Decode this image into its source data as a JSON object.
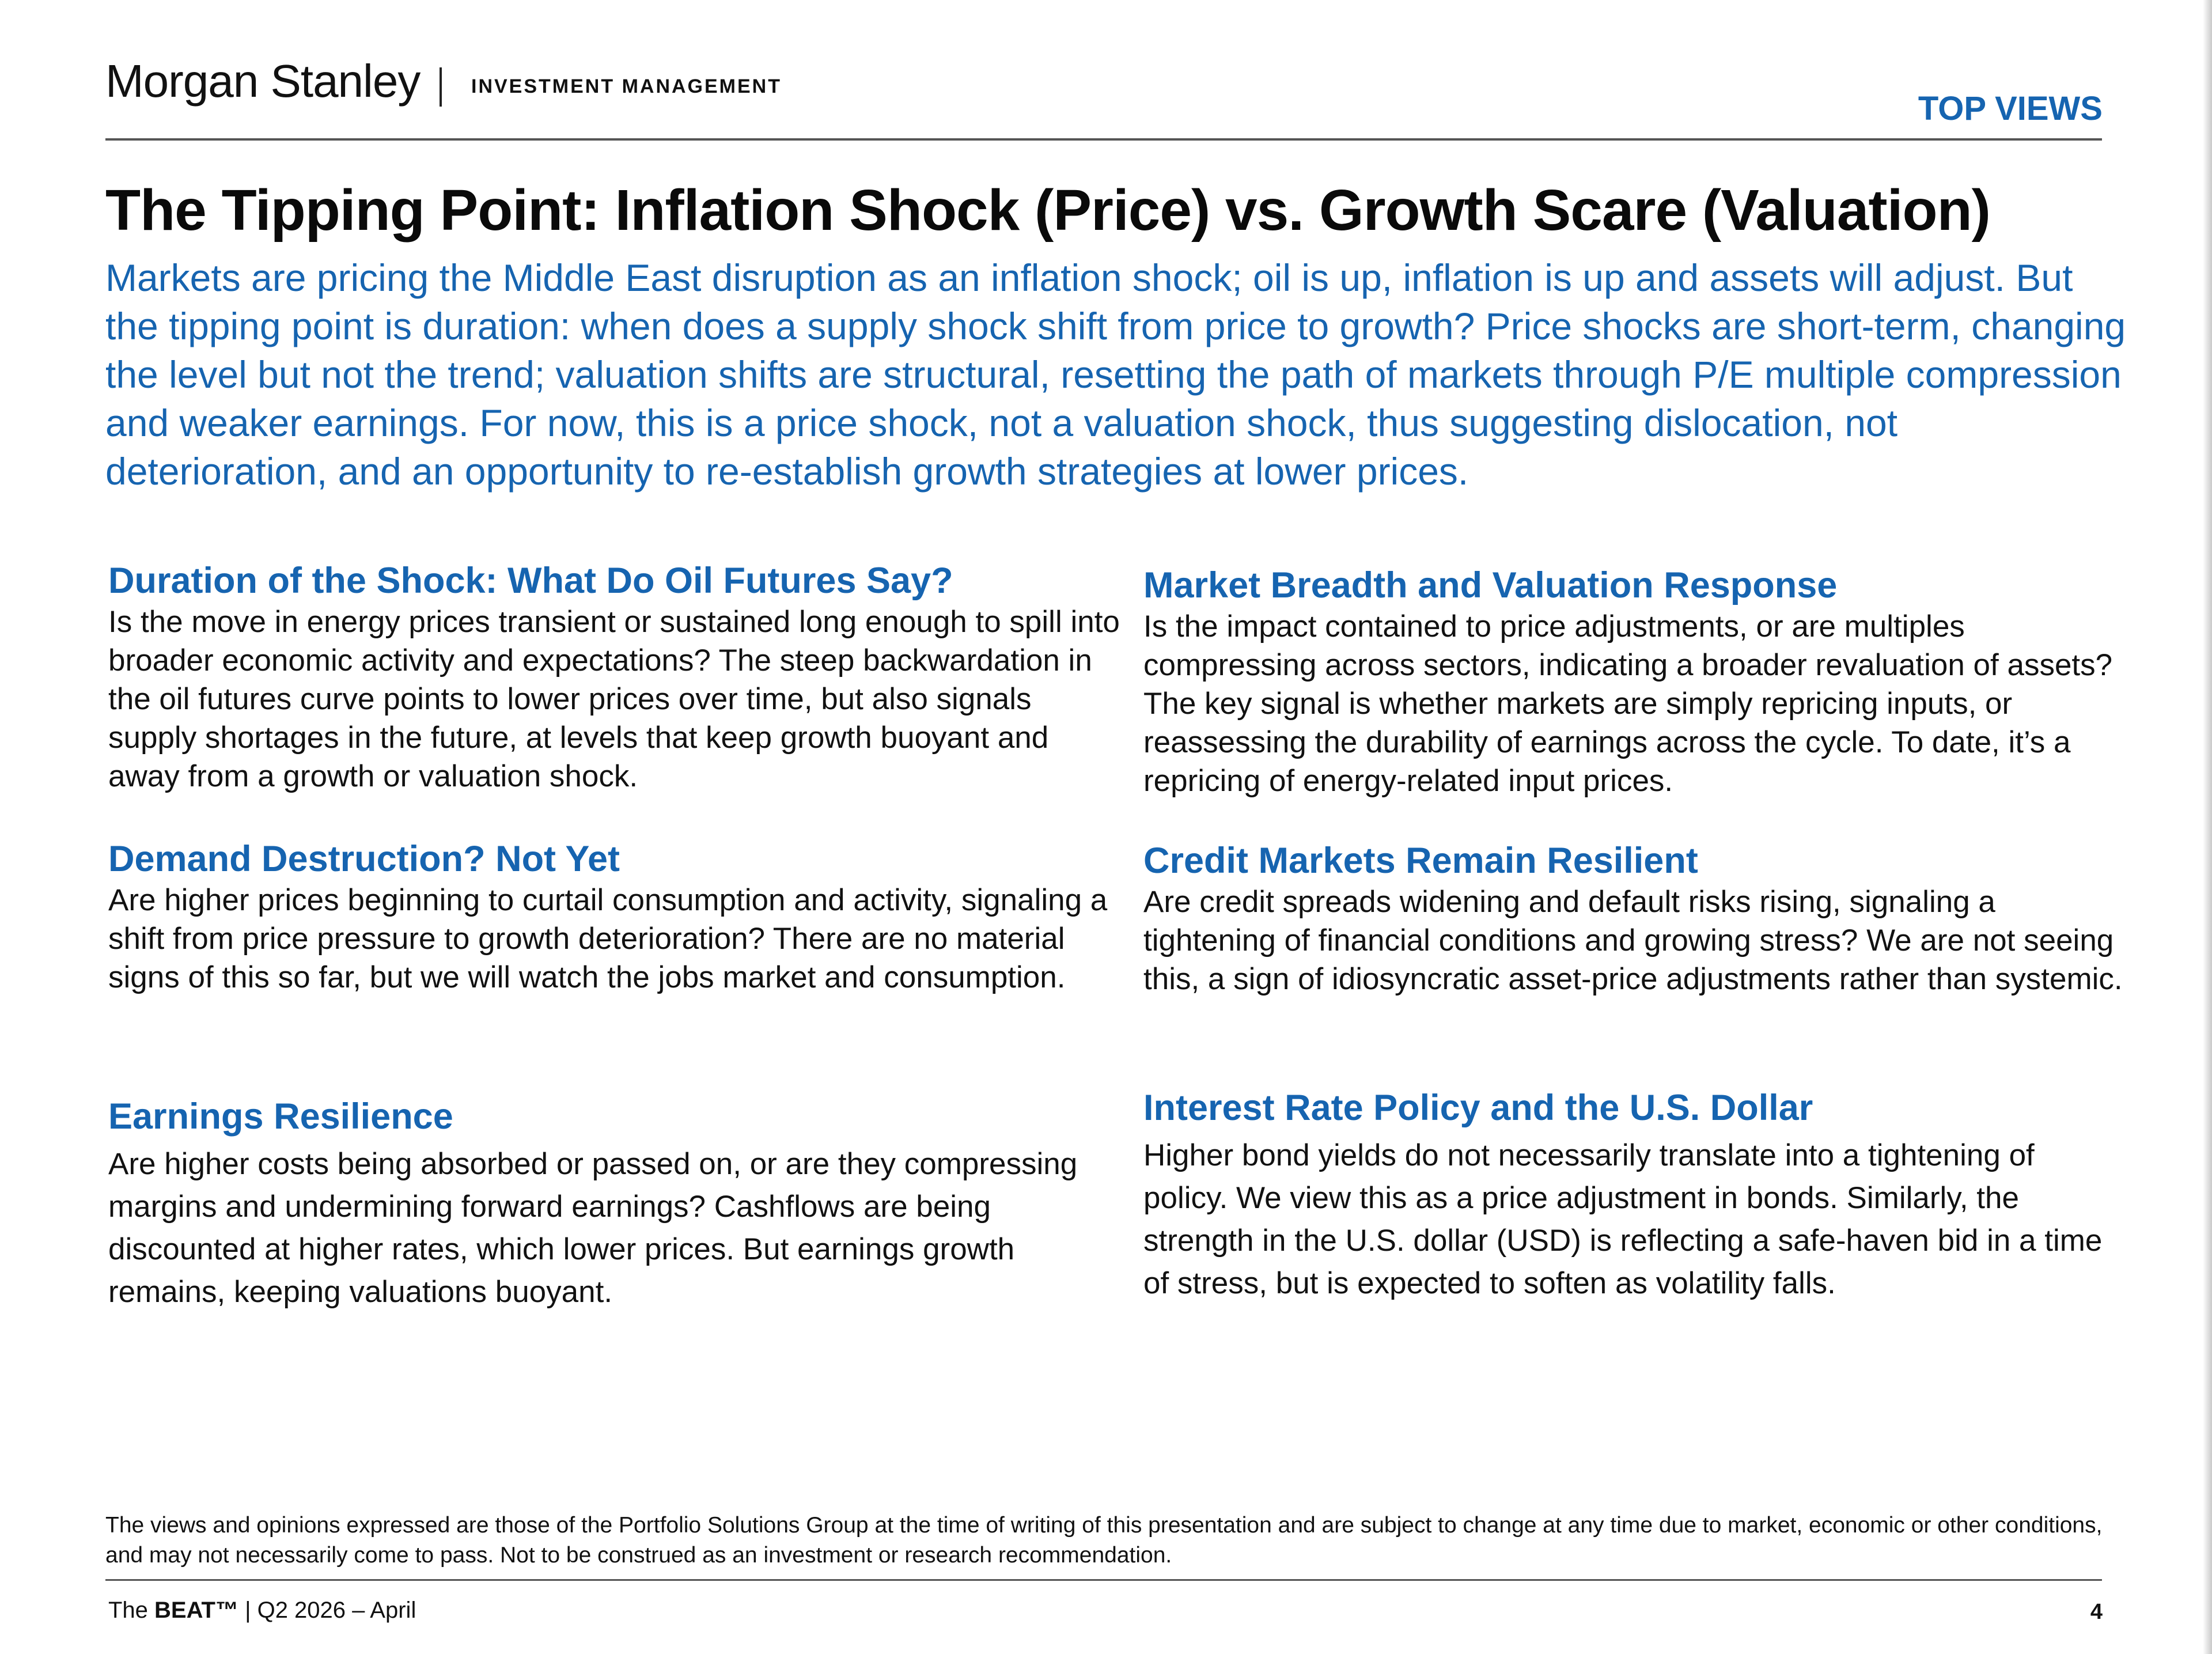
{
  "header": {
    "brand": "Morgan Stanley",
    "division": "INVESTMENT MANAGEMENT",
    "section_label": "TOP VIEWS"
  },
  "title": "The Tipping Point: Inflation Shock (Price) vs. Growth Scare (Valuation)",
  "intro": "Markets are pricing the Middle East disruption as an inflation shock; oil is up, inflation is up and assets will adjust. But the tipping point is duration: when does a supply shock shift from price to growth? Price shocks are short-term, changing the level but not the trend; valuation shifts are structural, resetting the path of markets through P/E multiple compression and weaker earnings. For now, this is a price shock, not a valuation shock, thus suggesting dislocation, not deterioration, and an opportunity to re-establish growth strategies at lower prices.",
  "sections": {
    "duration": {
      "heading": "Duration of the Shock: What Do Oil Futures Say?",
      "body": "Is the move in energy prices transient or sustained long enough to spill into broader economic activity and expectations? The steep backwardation in the oil futures curve points to lower prices over time, but also signals supply shortages in the future, at levels that keep growth buoyant and away from a growth or valuation shock."
    },
    "demand": {
      "heading": "Demand Destruction? Not Yet",
      "body": "Are higher prices beginning to curtail consumption and activity, signaling a shift from price pressure to growth deterioration? There are no material signs of this so far, but we will watch the jobs market and consumption."
    },
    "earnings": {
      "heading": "Earnings Resilience",
      "body": "Are higher costs being absorbed or passed on, or are they compressing margins and undermining forward earnings? Cashflows are being discounted at higher rates, which lower prices. But earnings growth remains, keeping valuations buoyant."
    },
    "breadth": {
      "heading": "Market Breadth and Valuation Response",
      "body": "Is the impact contained to price adjustments, or are multiples compressing across sectors, indicating a broader revaluation of assets? The key signal is whether markets are simply repricing inputs, or reassessing the durability of earnings across the cycle. To date, it’s a repricing of energy-related input prices."
    },
    "credit": {
      "heading": "Credit Markets Remain Resilient",
      "body": "Are credit spreads widening and default risks rising, signaling a tightening of financial conditions and growing stress? We are not seeing this, a sign of idiosyncratic asset-price adjustments rather than systemic."
    },
    "rates": {
      "heading": "Interest Rate Policy and the U.S. Dollar",
      "body": "Higher bond yields do not necessarily translate into a tightening of policy. We view this as a price adjustment in bonds. Similarly, the strength in the U.S. dollar (USD) is reflecting a safe-haven bid in a time of stress, but is expected to soften as volatility falls."
    }
  },
  "footer": {
    "disclaimer": "The views and opinions expressed are those of the Portfolio Solutions Group at the time of writing of this presentation and are subject to change at any time due to market, economic or other conditions, and may not necessarily come to pass. Not to be construed as an investment or research recommendation.",
    "publication_prefix": "The ",
    "publication_name": "BEAT™",
    "publication_suffix": " | Q2 2026 – April",
    "page_number": "4"
  }
}
